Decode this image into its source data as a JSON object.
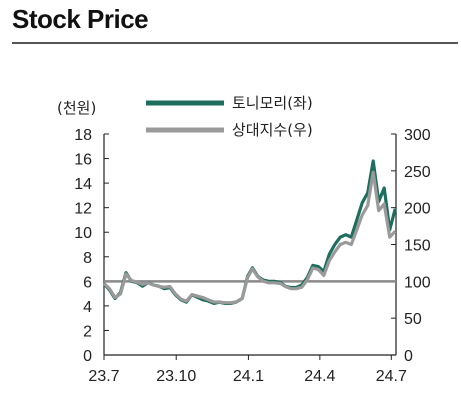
{
  "header": {
    "title": "Stock Price"
  },
  "chart_data": {
    "type": "line",
    "title": "Stock Price",
    "ylabel_left": "(천원)",
    "ylim_left": [
      0,
      18
    ],
    "ylim_right": [
      0,
      300
    ],
    "x_ticks": [
      "23.7",
      "23.10",
      "24.1",
      "24.4",
      "24.7"
    ],
    "y_ticks_left": [
      "0",
      "2",
      "4",
      "6",
      "8",
      "10",
      "12",
      "14",
      "16",
      "18"
    ],
    "y_ticks_right": [
      "0",
      "50",
      "100",
      "150",
      "200",
      "250",
      "300"
    ],
    "reference_line_right": 100,
    "legend_position": "top",
    "colors": {
      "price": "#1e6e5e",
      "relative": "#9a9a9a",
      "reference": "#8a8a8a"
    },
    "series": [
      {
        "name": "토니모리(좌)",
        "axis": "left",
        "x": [
          "2023-07-03",
          "2023-07-10",
          "2023-07-17",
          "2023-07-24",
          "2023-07-31",
          "2023-08-07",
          "2023-08-14",
          "2023-08-21",
          "2023-08-28",
          "2023-09-04",
          "2023-09-11",
          "2023-09-18",
          "2023-09-25",
          "2023-10-02",
          "2023-10-09",
          "2023-10-16",
          "2023-10-23",
          "2023-10-30",
          "2023-11-06",
          "2023-11-13",
          "2023-11-20",
          "2023-11-27",
          "2023-12-04",
          "2023-12-11",
          "2023-12-18",
          "2023-12-26",
          "2024-01-02",
          "2024-01-08",
          "2024-01-15",
          "2024-01-22",
          "2024-01-29",
          "2024-02-05",
          "2024-02-13",
          "2024-02-19",
          "2024-02-26",
          "2024-03-04",
          "2024-03-11",
          "2024-03-18",
          "2024-03-25",
          "2024-04-01",
          "2024-04-08",
          "2024-04-15",
          "2024-04-22",
          "2024-04-29",
          "2024-05-06",
          "2024-05-13",
          "2024-05-20",
          "2024-05-27",
          "2024-06-03",
          "2024-06-10",
          "2024-06-17",
          "2024-06-24",
          "2024-07-01",
          "2024-07-08"
        ],
        "values": [
          5.8,
          5.3,
          4.6,
          5.1,
          6.7,
          6.0,
          5.9,
          5.6,
          5.9,
          5.7,
          5.6,
          5.4,
          5.5,
          4.9,
          4.5,
          4.3,
          4.9,
          4.7,
          4.5,
          4.4,
          4.2,
          4.3,
          4.2,
          4.2,
          4.3,
          4.6,
          6.4,
          7.1,
          6.4,
          6.1,
          6.0,
          6.0,
          5.9,
          5.6,
          5.5,
          5.5,
          5.7,
          6.3,
          7.3,
          7.2,
          6.8,
          8.2,
          9.0,
          9.6,
          9.8,
          9.6,
          11.0,
          12.4,
          13.2,
          15.8,
          12.5,
          13.6,
          10.2,
          11.9
        ]
      },
      {
        "name": "상대지수(우)",
        "axis": "right",
        "x": [
          "2023-07-03",
          "2023-07-10",
          "2023-07-17",
          "2023-07-24",
          "2023-07-31",
          "2023-08-07",
          "2023-08-14",
          "2023-08-21",
          "2023-08-28",
          "2023-09-04",
          "2023-09-11",
          "2023-09-18",
          "2023-09-25",
          "2023-10-02",
          "2023-10-09",
          "2023-10-16",
          "2023-10-23",
          "2023-10-30",
          "2023-11-06",
          "2023-11-13",
          "2023-11-20",
          "2023-11-27",
          "2023-12-04",
          "2023-12-11",
          "2023-12-18",
          "2023-12-26",
          "2024-01-02",
          "2024-01-08",
          "2024-01-15",
          "2024-01-22",
          "2024-01-29",
          "2024-02-05",
          "2024-02-13",
          "2024-02-19",
          "2024-02-26",
          "2024-03-04",
          "2024-03-11",
          "2024-03-18",
          "2024-03-25",
          "2024-04-01",
          "2024-04-08",
          "2024-04-15",
          "2024-04-22",
          "2024-04-29",
          "2024-05-06",
          "2024-05-13",
          "2024-05-20",
          "2024-05-27",
          "2024-06-03",
          "2024-06-10",
          "2024-06-17",
          "2024-06-24",
          "2024-07-01",
          "2024-07-08"
        ],
        "values": [
          97,
          90,
          78,
          83,
          110,
          101,
          99,
          96,
          98,
          95,
          93,
          92,
          93,
          83,
          76,
          73,
          82,
          80,
          78,
          75,
          72,
          72,
          71,
          71,
          72,
          77,
          105,
          117,
          106,
          100,
          98,
          98,
          97,
          93,
          90,
          90,
          92,
          102,
          118,
          116,
          108,
          128,
          140,
          150,
          153,
          150,
          170,
          190,
          203,
          248,
          196,
          205,
          160,
          168
        ]
      }
    ]
  }
}
